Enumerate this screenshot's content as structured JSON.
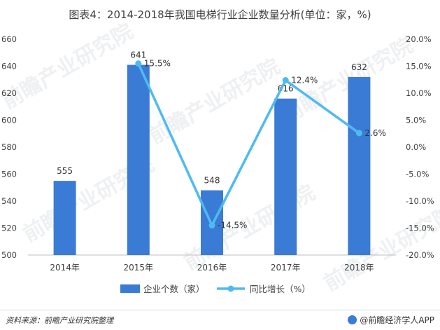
{
  "title": "图表4：2014-2018年我国电梯行业企业数量分析(单位：家，%)",
  "source": "资料来源：前瞻产业研究院整理",
  "brand": "@前瞻经济学人APP",
  "watermark": "前瞻产业研究院",
  "colors": {
    "bar": "#3a7bd5",
    "line": "#4dbbf0",
    "axis": "#bfbfbf",
    "text": "#404040"
  },
  "chart_data": {
    "type": "bar",
    "categories": [
      "2014年",
      "2015年",
      "2016年",
      "2017年",
      "2018年"
    ],
    "series": [
      {
        "name": "企业个数（家）",
        "type": "bar",
        "axis": "left",
        "values": [
          555,
          641,
          548,
          616,
          632
        ]
      },
      {
        "name": "同比增长（%）",
        "type": "line",
        "axis": "right",
        "values": [
          null,
          15.5,
          -14.5,
          12.4,
          2.6
        ]
      }
    ],
    "bar_labels": [
      "555",
      "641",
      "548",
      "616",
      "632"
    ],
    "line_labels": [
      "",
      "15.5%",
      "-14.5%",
      "12.4%",
      "2.6%"
    ],
    "y_left": {
      "min": 500,
      "max": 660,
      "step": 20
    },
    "y_right": {
      "min": -20,
      "max": 20,
      "step": 5
    },
    "y_right_ticks": [
      "20.0%",
      "15.0%",
      "10.0%",
      "5.0%",
      "0.0%",
      "-5.0%",
      "-10.0%",
      "-15.0%",
      "-20.0%"
    ],
    "legend_position": "bottom",
    "grid": false
  }
}
